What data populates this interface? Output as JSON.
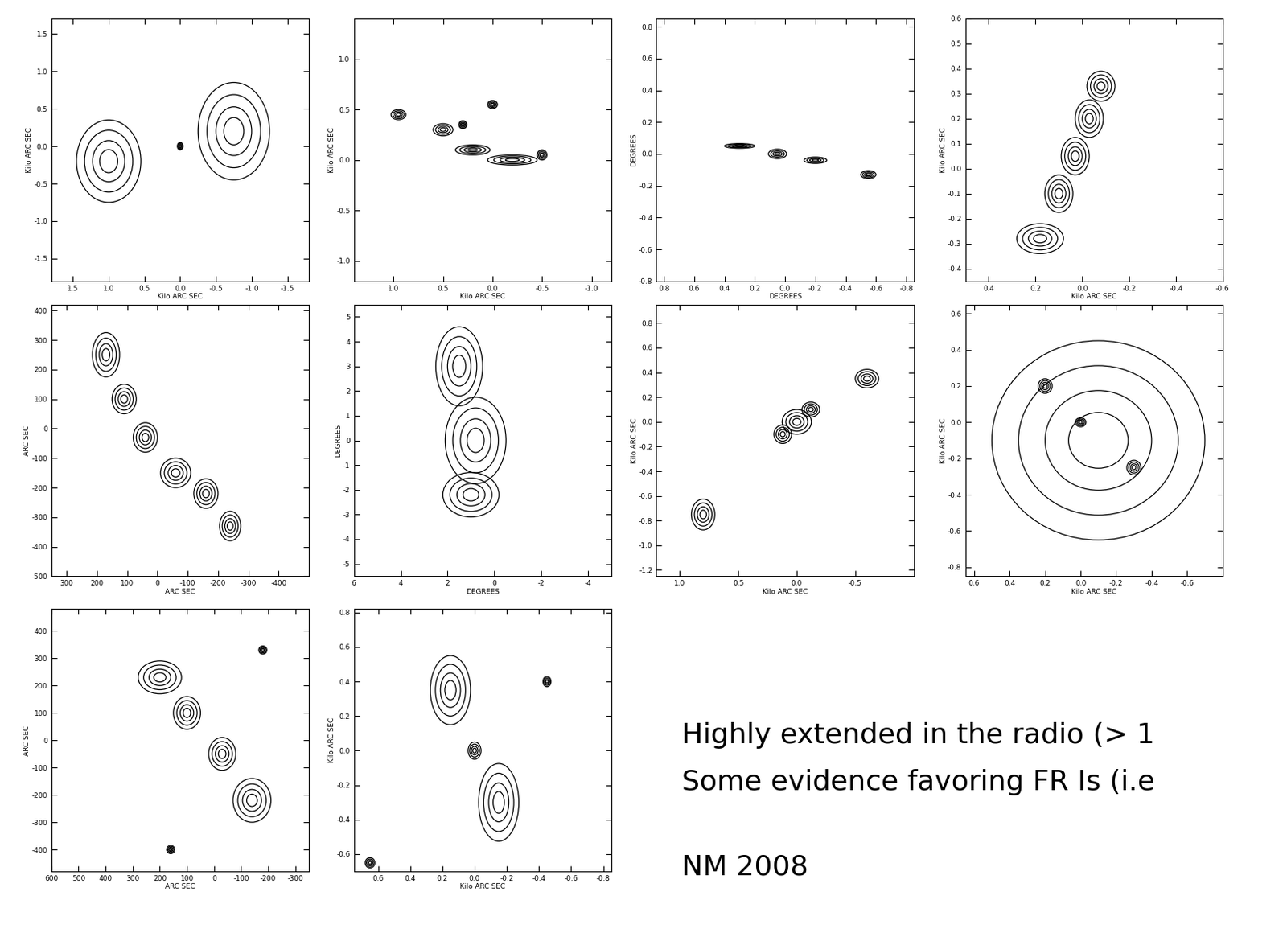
{
  "chart_data": [
    {
      "type": "contour",
      "xlabel": "Kilo ARC SEC",
      "ylabel": "Kilo ARC SEC",
      "xlim": [
        1.8,
        -1.8
      ],
      "ylim": [
        -1.8,
        1.7
      ],
      "xticks": [
        1.5,
        1.0,
        0.5,
        0.0,
        -0.5,
        -1.0,
        -1.5
      ],
      "yticks": [
        -1.5,
        -1.0,
        -0.5,
        0.0,
        0.5,
        1.0,
        1.5
      ],
      "components": [
        [
          1.0,
          -0.2,
          0.9,
          1.1
        ],
        [
          -0.75,
          0.2,
          1.0,
          1.3
        ],
        [
          0.0,
          0.0,
          0.08,
          0.1
        ]
      ]
    },
    {
      "type": "contour",
      "xlabel": "Kilo ARC SEC",
      "ylabel": "Kilo ARC SEC",
      "xlim": [
        1.4,
        -1.2
      ],
      "ylim": [
        -1.2,
        1.4
      ],
      "xticks": [
        1.0,
        0.5,
        0.0,
        -0.5,
        -1.0
      ],
      "yticks": [
        -1.0,
        -0.5,
        0.0,
        0.5,
        1.0
      ],
      "components": [
        [
          0.95,
          0.45,
          0.15,
          0.1
        ],
        [
          0.5,
          0.3,
          0.2,
          0.12
        ],
        [
          0.2,
          0.1,
          0.35,
          0.1
        ],
        [
          -0.2,
          0.0,
          0.5,
          0.1
        ],
        [
          0.3,
          0.35,
          0.08,
          0.08
        ],
        [
          -0.5,
          0.05,
          0.1,
          0.1
        ],
        [
          0.0,
          0.55,
          0.1,
          0.08
        ]
      ]
    },
    {
      "type": "contour",
      "xlabel": "DEGREES",
      "ylabel": "DEGREES",
      "xlim": [
        0.85,
        -0.85
      ],
      "ylim": [
        -0.8,
        0.85
      ],
      "xticks": [
        0.8,
        0.6,
        0.4,
        0.2,
        0.0,
        -0.2,
        -0.4,
        -0.6,
        -0.8
      ],
      "yticks": [
        -0.8,
        -0.6,
        -0.4,
        -0.2,
        0.0,
        0.2,
        0.4,
        0.6,
        0.8
      ],
      "components": [
        [
          0.3,
          0.05,
          0.2,
          0.03
        ],
        [
          0.05,
          0.0,
          0.12,
          0.06
        ],
        [
          -0.2,
          -0.04,
          0.15,
          0.04
        ],
        [
          -0.55,
          -0.13,
          0.1,
          0.05
        ]
      ]
    },
    {
      "type": "contour",
      "xlabel": "Kilo ARC SEC",
      "ylabel": "Kilo ARC SEC",
      "xlim": [
        0.5,
        -0.6
      ],
      "ylim": [
        -0.45,
        0.6
      ],
      "xticks": [
        0.4,
        0.2,
        0.0,
        -0.2,
        -0.4,
        -0.6
      ],
      "yticks": [
        -0.4,
        -0.3,
        -0.2,
        -0.1,
        0.0,
        0.1,
        0.2,
        0.3,
        0.4,
        0.5,
        0.6
      ],
      "components": [
        [
          0.18,
          -0.28,
          0.2,
          0.12
        ],
        [
          0.1,
          -0.1,
          0.12,
          0.15
        ],
        [
          0.03,
          0.05,
          0.12,
          0.15
        ],
        [
          -0.03,
          0.2,
          0.12,
          0.15
        ],
        [
          -0.08,
          0.33,
          0.12,
          0.12
        ]
      ]
    },
    {
      "type": "contour",
      "xlabel": "ARC SEC",
      "ylabel": "ARC SEC",
      "xlim": [
        350,
        -500
      ],
      "ylim": [
        -500,
        420
      ],
      "xticks": [
        300,
        200,
        100,
        0,
        -100,
        -200,
        -300,
        -400
      ],
      "yticks": [
        -500,
        -400,
        -300,
        -200,
        -100,
        0,
        100,
        200,
        300,
        400
      ],
      "components": [
        [
          170,
          250,
          90,
          150
        ],
        [
          110,
          100,
          80,
          100
        ],
        [
          40,
          -30,
          80,
          100
        ],
        [
          -60,
          -150,
          100,
          100
        ],
        [
          -160,
          -220,
          80,
          100
        ],
        [
          -240,
          -330,
          70,
          100
        ]
      ]
    },
    {
      "type": "contour",
      "xlabel": "DEGREES",
      "ylabel": "DEGREES",
      "xlim": [
        6,
        -5
      ],
      "ylim": [
        -5.5,
        5.5
      ],
      "xticks": [
        6,
        4,
        2,
        0,
        -2,
        -4
      ],
      "yticks": [
        -5,
        -4,
        -3,
        -2,
        -1,
        0,
        1,
        2,
        3,
        4,
        5
      ],
      "components": [
        [
          1.5,
          3,
          2.0,
          3.2
        ],
        [
          0.8,
          0,
          2.6,
          3.5
        ],
        [
          1.0,
          -2.2,
          2.4,
          1.8
        ]
      ]
    },
    {
      "type": "contour",
      "xlabel": "Kilo ARC SEC",
      "ylabel": "Kilo ARC SEC",
      "xlim": [
        1.2,
        -1.0
      ],
      "ylim": [
        -1.25,
        0.95
      ],
      "xticks": [
        1.0,
        0.5,
        0.0,
        -0.5
      ],
      "yticks": [
        -1.2,
        -1.0,
        -0.8,
        -0.6,
        -0.4,
        -0.2,
        0.0,
        0.2,
        0.4,
        0.6,
        0.8
      ],
      "components": [
        [
          0.8,
          -0.75,
          0.2,
          0.25
        ],
        [
          0.0,
          0.0,
          0.25,
          0.2
        ],
        [
          0.12,
          -0.1,
          0.15,
          0.15
        ],
        [
          -0.12,
          0.1,
          0.15,
          0.12
        ],
        [
          -0.6,
          0.35,
          0.2,
          0.15
        ]
      ]
    },
    {
      "type": "contour",
      "xlabel": "Kilo ARC SEC",
      "ylabel": "Kilo ARC SEC",
      "xlim": [
        0.65,
        -0.8
      ],
      "ylim": [
        -0.85,
        0.65
      ],
      "xticks": [
        0.6,
        0.4,
        0.2,
        0.0,
        -0.2,
        -0.4,
        -0.6
      ],
      "yticks": [
        -0.8,
        -0.6,
        -0.4,
        -0.2,
        0.0,
        0.2,
        0.4,
        0.6
      ],
      "components": [
        [
          -0.1,
          -0.1,
          1.2,
          1.1
        ],
        [
          0.0,
          0.0,
          0.06,
          0.05
        ],
        [
          -0.3,
          -0.25,
          0.08,
          0.08
        ],
        [
          0.2,
          0.2,
          0.08,
          0.08
        ]
      ]
    },
    {
      "type": "contour",
      "xlabel": "ARC SEC",
      "ylabel": "ARC SEC",
      "xlim": [
        600,
        -350
      ],
      "ylim": [
        -480,
        480
      ],
      "xticks": [
        600,
        500,
        400,
        300,
        200,
        100,
        0,
        -100,
        -200,
        -300
      ],
      "yticks": [
        -400,
        -300,
        -200,
        -100,
        0,
        100,
        200,
        300,
        400
      ],
      "components": [
        [
          200,
          230,
          160,
          120
        ],
        [
          100,
          100,
          100,
          120
        ],
        [
          -30,
          -50,
          100,
          120
        ],
        [
          -140,
          -220,
          140,
          160
        ],
        [
          160,
          -400,
          30,
          30
        ],
        [
          -180,
          330,
          30,
          30
        ]
      ]
    },
    {
      "type": "contour",
      "xlabel": "Kilo ARC SEC",
      "ylabel": "Kilo ARC SEC",
      "xlim": [
        0.75,
        -0.85
      ],
      "ylim": [
        -0.7,
        0.82
      ],
      "xticks": [
        0.6,
        0.4,
        0.2,
        0.0,
        -0.2,
        -0.4,
        -0.6,
        -0.8
      ],
      "yticks": [
        -0.6,
        -0.4,
        -0.2,
        0.0,
        0.2,
        0.4,
        0.6,
        0.8
      ],
      "components": [
        [
          0.15,
          0.35,
          0.25,
          0.4
        ],
        [
          0.0,
          0.0,
          0.08,
          0.1
        ],
        [
          -0.15,
          -0.3,
          0.25,
          0.45
        ],
        [
          -0.45,
          0.4,
          0.05,
          0.06
        ],
        [
          0.65,
          -0.65,
          0.06,
          0.06
        ]
      ]
    }
  ],
  "texts": [
    "Highly extended in the radio (> 1",
    "Some evidence favoring FR Is (i.e",
    "NM 2008"
  ]
}
